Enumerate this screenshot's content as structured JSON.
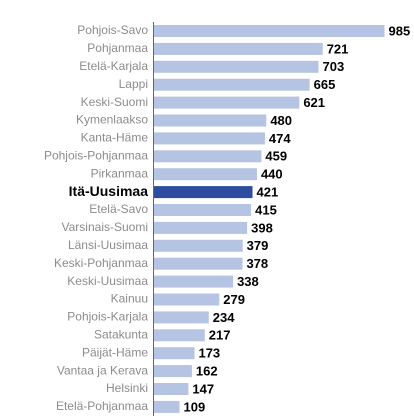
{
  "chart_data": {
    "type": "barh",
    "categories": [
      "Pohjois-Savo",
      "Pohjanmaa",
      "Etelä-Karjala",
      "Lappi",
      "Keski-Suomi",
      "Kymenlaakso",
      "Kanta-Häme",
      "Pohjois-Pohjanmaa",
      "Pirkanmaa",
      "Itä-Uusimaa",
      "Etelä-Savo",
      "Varsinais-Suomi",
      "Länsi-Uusimaa",
      "Keski-Pohjanmaa",
      "Keski-Uusimaa",
      "Kainuu",
      "Pohjois-Karjala",
      "Satakunta",
      "Päijät-Häme",
      "Vantaa ja Kerava",
      "Helsinki",
      "Etelä-Pohjanmaa"
    ],
    "values": [
      985,
      721,
      703,
      665,
      621,
      480,
      474,
      459,
      440,
      421,
      415,
      398,
      379,
      378,
      338,
      279,
      234,
      217,
      173,
      162,
      147,
      109
    ],
    "color": "#b4c4e2",
    "highlight_color": "#2f4d9f",
    "highlight_category": "Itä-Uusimaa",
    "xlim": [
      0,
      1000
    ]
  }
}
